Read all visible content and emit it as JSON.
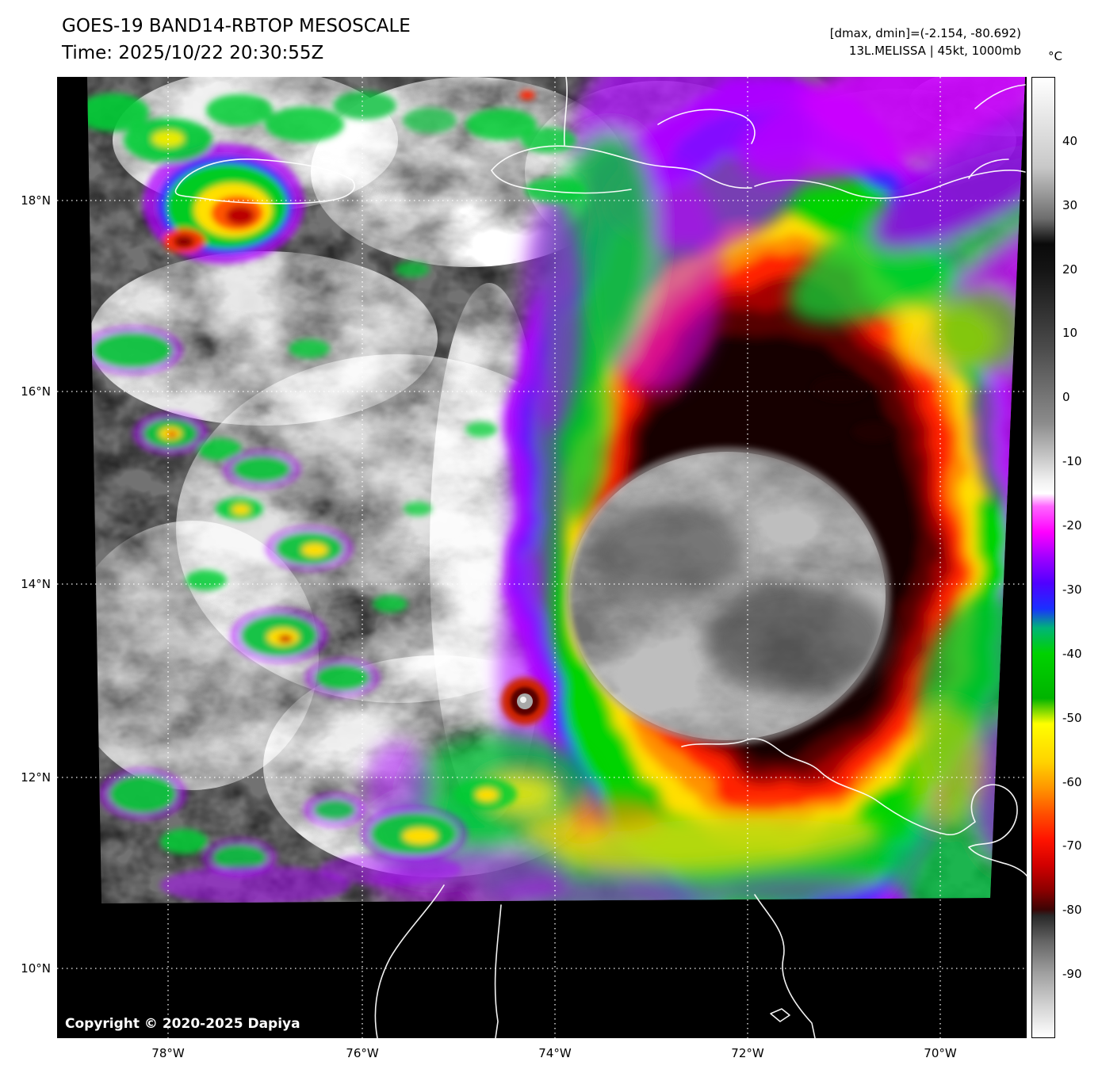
{
  "header": {
    "title": "GOES-19 BAND14-RBTOP MESOSCALE",
    "time": "Time: 2025/10/22 20:30:55Z",
    "stats": "[dmax, dmin]=(-2.154, -80.692)",
    "storm": "13L.MELISSA | 45kt, 1000mb"
  },
  "axes": {
    "lat_labels": [
      "18°N",
      "16°N",
      "14°N",
      "12°N",
      "10°N"
    ],
    "lon_labels": [
      "78°W",
      "76°W",
      "74°W",
      "72°W",
      "70°W"
    ]
  },
  "colorbar": {
    "unit": "°C",
    "range": [
      50,
      -100
    ],
    "ticks": [
      40,
      30,
      20,
      10,
      0,
      -10,
      -20,
      -30,
      -40,
      -50,
      -60,
      -70,
      -80,
      -90
    ],
    "stops": [
      {
        "t": 50,
        "color": "#ffffff"
      },
      {
        "t": 36,
        "color": "#c8c8c8"
      },
      {
        "t": 28,
        "color": "#6e6e6e"
      },
      {
        "t": 24,
        "color": "#0a0a0a"
      },
      {
        "t": 20,
        "color": "#141414"
      },
      {
        "t": 8,
        "color": "#4a4a4a"
      },
      {
        "t": -4,
        "color": "#8c8c8c"
      },
      {
        "t": -13,
        "color": "#f0f0f0"
      },
      {
        "t": -15,
        "color": "#ffffff"
      },
      {
        "t": -17,
        "color": "#ff66ff"
      },
      {
        "t": -21,
        "color": "#ff00ff"
      },
      {
        "t": -25,
        "color": "#a000ff"
      },
      {
        "t": -29,
        "color": "#5000ff"
      },
      {
        "t": -33,
        "color": "#1a30ff"
      },
      {
        "t": -36,
        "color": "#00b478"
      },
      {
        "t": -40,
        "color": "#00d200"
      },
      {
        "t": -47,
        "color": "#00b400"
      },
      {
        "t": -51,
        "color": "#ffff00"
      },
      {
        "t": -57,
        "color": "#ffd200"
      },
      {
        "t": -61,
        "color": "#ff9600"
      },
      {
        "t": -65,
        "color": "#ff5000"
      },
      {
        "t": -69,
        "color": "#ff1400"
      },
      {
        "t": -73,
        "color": "#d20000"
      },
      {
        "t": -77,
        "color": "#8c0000"
      },
      {
        "t": -80,
        "color": "#3c0404"
      },
      {
        "t": -81,
        "color": "#282828"
      },
      {
        "t": -85,
        "color": "#646464"
      },
      {
        "t": -90,
        "color": "#a0a0a0"
      },
      {
        "t": -95,
        "color": "#d2d2d2"
      },
      {
        "t": -100,
        "color": "#ffffff"
      }
    ]
  },
  "map": {
    "copyright": "Copyright © 2020-2025 Dapiya"
  }
}
